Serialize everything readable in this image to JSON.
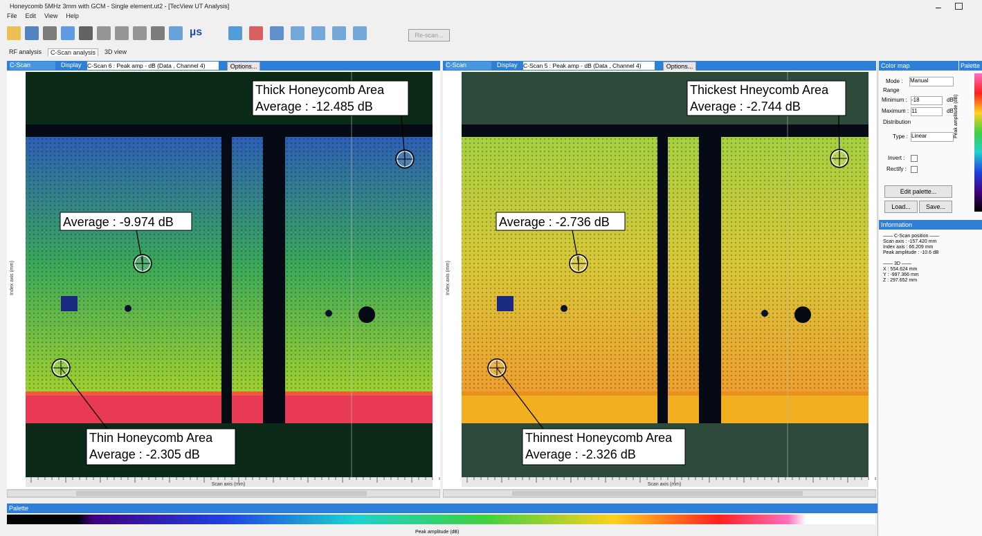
{
  "window": {
    "title": "Honeycomb 5MHz 3mm with GCM - Single element.ut2 - [TecView UT Analysis]"
  },
  "menu": [
    "File",
    "Edit",
    "View",
    "Help"
  ],
  "toolbar": {
    "units": "µs",
    "rescan": "Re-scan..."
  },
  "tabs": [
    "RF analysis",
    "C-Scan analysis",
    "3D view"
  ],
  "panels": [
    {
      "view": "C-Scan",
      "display_label": "Display",
      "display": "C-Scan 6 : Peak amp - dB (Data , Channel 4)",
      "options": "Options...",
      "x_axis": "Scan axis (mm)",
      "y_axis": "Index axis (mm)",
      "annotations": [
        {
          "title": "Thick Honeycomb Area",
          "text": "Average : -12.485 dB"
        },
        {
          "text": "Average : -9.974 dB"
        },
        {
          "title": "Thin Honeycomb Area",
          "text": "Average : -2.305 dB"
        }
      ]
    },
    {
      "view": "C-Scan",
      "display_label": "Display",
      "display": "C-Scan 5 : Peak amp - dB (Data , Channel 4)",
      "options": "Options...",
      "x_axis": "Scan axis (mm)",
      "y_axis": "Index axis (mm)",
      "annotations": [
        {
          "title": "Thickest Hneycomb Area",
          "text": "Average : -2.744 dB"
        },
        {
          "text": "Average : -2.736 dB"
        },
        {
          "title": "Thinnest Honeycomb Area",
          "text": "Average : -2.326 dB"
        }
      ]
    }
  ],
  "color_map": {
    "title": "Color map",
    "palette_title": "Palette",
    "mode_label": "Mode :",
    "mode": "Manual",
    "range": "Range",
    "min_label": "Minimum :",
    "min": "-18",
    "max_label": "Maximum :",
    "max": "11",
    "unit": "dB",
    "distribution": "Distribution",
    "type_label": "Type :",
    "type": "Linear",
    "invert": "Invert :",
    "rectify": "Rectify :",
    "edit": "Edit palette...",
    "load": "Load...",
    "save": "Save...",
    "palette_axis": "Peak amplitude (dB)"
  },
  "information": {
    "title": "Information",
    "lines": [
      "—— C-Scan position ——",
      "Scan axis : -157.420 mm",
      "Index axis : 66.209 mm",
      "Peak amplitude : -10.6 dB",
      "—— 3D ——",
      "X : 554.624 mm",
      "Y : -997.366 mm",
      "Z : 297.652 mm"
    ]
  },
  "palette": {
    "title": "Palette",
    "axis": "Peak amplitude (dB)"
  }
}
